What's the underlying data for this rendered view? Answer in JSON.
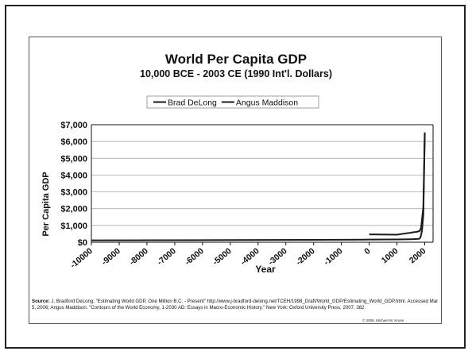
{
  "source": {
    "label": "Source:",
    "text": "J. Bradford DeLong, \"Estimating World GDP, One Million B.C. - Present\" http://www.j-bradford-delong.net/TCEH/1998_Draft/World_GDP/Estimating_World_GDP.html. Accessed Mar 5, 2006; Angus Maddison. \"Contours of the World Economy, 1-2030 AD: Essays in Macro-Economic History.\" New York: Oxford University Press, 2007. 382."
  },
  "copyright": "© 2008, Michael W. Kruse",
  "chart_data": {
    "type": "line",
    "title": "World Per Capita GDP",
    "subtitle": "10,000 BCE - 2003 CE (1990 Int'l. Dollars)",
    "xlabel": "Year",
    "ylabel": "Per Capita GDP",
    "xlim": [
      -10000,
      2300
    ],
    "ylim": [
      0,
      7000
    ],
    "x_ticks": [
      -10000,
      -9000,
      -8000,
      -7000,
      -6000,
      -5000,
      -4000,
      -3000,
      -2000,
      -1000,
      0,
      1000,
      2000
    ],
    "x_tick_labels": [
      "-10000",
      "-9000",
      "-8000",
      "-7000",
      "-6000",
      "-5000",
      "-4000",
      "-3000",
      "-2000",
      "-1000",
      "0",
      "1000",
      "2000"
    ],
    "y_ticks": [
      0,
      1000,
      2000,
      3000,
      4000,
      5000,
      6000,
      7000
    ],
    "y_tick_labels": [
      "$0",
      "$1,000",
      "$2,000",
      "$3,000",
      "$4,000",
      "$5,000",
      "$6,000",
      "$7,000"
    ],
    "grid": true,
    "legend_position": "top",
    "series": [
      {
        "name": "Brad DeLong",
        "color": "#1a1a1a",
        "x": [
          -10000,
          -5000,
          -1000,
          -200,
          1,
          1000,
          1500,
          1800,
          1850,
          1900,
          1950,
          1975,
          2000
        ],
        "y": [
          110,
          130,
          150,
          155,
          160,
          165,
          180,
          200,
          300,
          680,
          1620,
          4000,
          6540
        ]
      },
      {
        "name": "Angus Maddison",
        "color": "#1a1a1a",
        "x": [
          1,
          1000,
          1500,
          1600,
          1700,
          1820,
          1870,
          1913,
          1950,
          1973,
          2003
        ],
        "y": [
          467,
          450,
          566,
          596,
          615,
          667,
          873,
          1526,
          2113,
          4091,
          6516
        ]
      }
    ]
  }
}
